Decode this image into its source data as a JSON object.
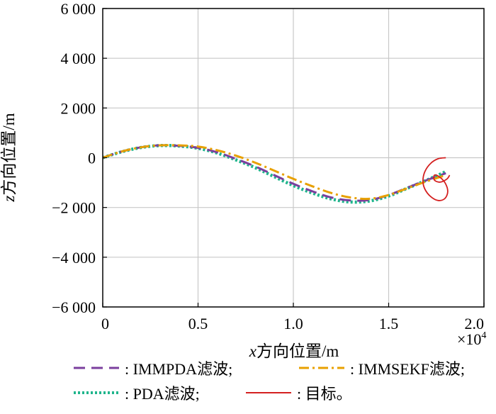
{
  "chart_data": {
    "type": "line",
    "xlabel_var": "x",
    "xlabel_text": "方向位置/m",
    "ylabel_var": "z",
    "ylabel_text": "方向位置/m",
    "x_multiplier": "×10",
    "x_multiplier_exp": "4",
    "xlim": [
      0,
      2.0
    ],
    "ylim": [
      -6000,
      6000
    ],
    "x_ticks": [
      0,
      0.5,
      1.0,
      1.5,
      2.0
    ],
    "x_tick_labels": [
      "0",
      "0.5",
      "1.0",
      "1.5",
      "2.0"
    ],
    "y_ticks": [
      -6000,
      -4000,
      -2000,
      0,
      2000,
      4000,
      6000
    ],
    "y_tick_labels": [
      "−6 000",
      "−4 000",
      "−2 000",
      "0",
      "2 000",
      "4 000",
      "6 000"
    ],
    "grid": true,
    "legend_position": "bottom",
    "series": [
      {
        "name": "IMMPDA滤波",
        "legend_label": ": IMMPDA滤波;",
        "color": "#7b3f9e",
        "style": "dash",
        "x": [
          0,
          0.1,
          0.2,
          0.3,
          0.4,
          0.5,
          0.6,
          0.7,
          0.8,
          0.9,
          1.0,
          1.1,
          1.2,
          1.3,
          1.4,
          1.5,
          1.6,
          1.7,
          1.8
        ],
        "y": [
          0,
          250,
          420,
          500,
          480,
          400,
          220,
          -50,
          -350,
          -700,
          -1050,
          -1350,
          -1600,
          -1720,
          -1700,
          -1500,
          -1200,
          -900,
          -620
        ]
      },
      {
        "name": "IMMSEKF滤波",
        "legend_label": ": IMMSEKF滤波;",
        "color": "#e8a000",
        "style": "dashdot",
        "x": [
          0,
          0.1,
          0.2,
          0.3,
          0.4,
          0.5,
          0.6,
          0.7,
          0.8,
          0.9,
          1.0,
          1.1,
          1.2,
          1.3,
          1.4,
          1.5,
          1.6,
          1.7,
          1.8
        ],
        "y": [
          0,
          250,
          420,
          500,
          500,
          450,
          300,
          80,
          -200,
          -520,
          -850,
          -1150,
          -1420,
          -1600,
          -1650,
          -1500,
          -1220,
          -950,
          -700
        ]
      },
      {
        "name": "PDA滤波",
        "legend_label": ": PDA滤波;",
        "color": "#1fb58c",
        "style": "dotted",
        "x": [
          0,
          0.1,
          0.2,
          0.3,
          0.4,
          0.5,
          0.6,
          0.7,
          0.8,
          0.9,
          1.0,
          1.1,
          1.2,
          1.3,
          1.4,
          1.5,
          1.6,
          1.7,
          1.8
        ],
        "y": [
          0,
          240,
          410,
          490,
          470,
          380,
          190,
          -90,
          -400,
          -760,
          -1120,
          -1420,
          -1660,
          -1780,
          -1740,
          -1540,
          -1220,
          -900,
          -560
        ]
      },
      {
        "name": "目标",
        "legend_label": ": 目标。",
        "color": "#d42020",
        "style": "solid",
        "x": [
          1.8,
          1.76,
          1.72,
          1.69,
          1.68,
          1.69,
          1.72,
          1.76,
          1.795,
          1.81,
          1.795,
          1.765,
          1.74,
          1.74,
          1.77,
          1.805,
          1.82
        ],
        "y": [
          0,
          -40,
          -230,
          -560,
          -930,
          -1260,
          -1560,
          -1720,
          -1640,
          -1350,
          -1000,
          -760,
          -700,
          -900,
          -980,
          -860,
          -700
        ]
      }
    ]
  }
}
